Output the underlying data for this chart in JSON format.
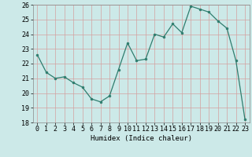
{
  "x": [
    0,
    1,
    2,
    3,
    4,
    5,
    6,
    7,
    8,
    9,
    10,
    11,
    12,
    13,
    14,
    15,
    16,
    17,
    18,
    19,
    20,
    21,
    22,
    23
  ],
  "y": [
    22.6,
    21.4,
    21.0,
    21.1,
    20.7,
    20.4,
    19.6,
    19.4,
    19.8,
    21.6,
    23.4,
    22.2,
    22.3,
    24.0,
    23.8,
    24.7,
    24.1,
    25.9,
    25.7,
    25.5,
    24.9,
    24.4,
    22.2,
    18.2
  ],
  "line_color": "#2e7d6e",
  "marker_color": "#2e7d6e",
  "bg_color": "#cce9e8",
  "grid_color": "#b8d8d7",
  "xlabel": "Humidex (Indice chaleur)",
  "ylim": [
    18,
    26
  ],
  "xlim": [
    -0.5,
    23.5
  ],
  "yticks": [
    18,
    19,
    20,
    21,
    22,
    23,
    24,
    25,
    26
  ],
  "xticks": [
    0,
    1,
    2,
    3,
    4,
    5,
    6,
    7,
    8,
    9,
    10,
    11,
    12,
    13,
    14,
    15,
    16,
    17,
    18,
    19,
    20,
    21,
    22,
    23
  ],
  "label_fontsize": 6.5,
  "tick_fontsize": 6.0
}
